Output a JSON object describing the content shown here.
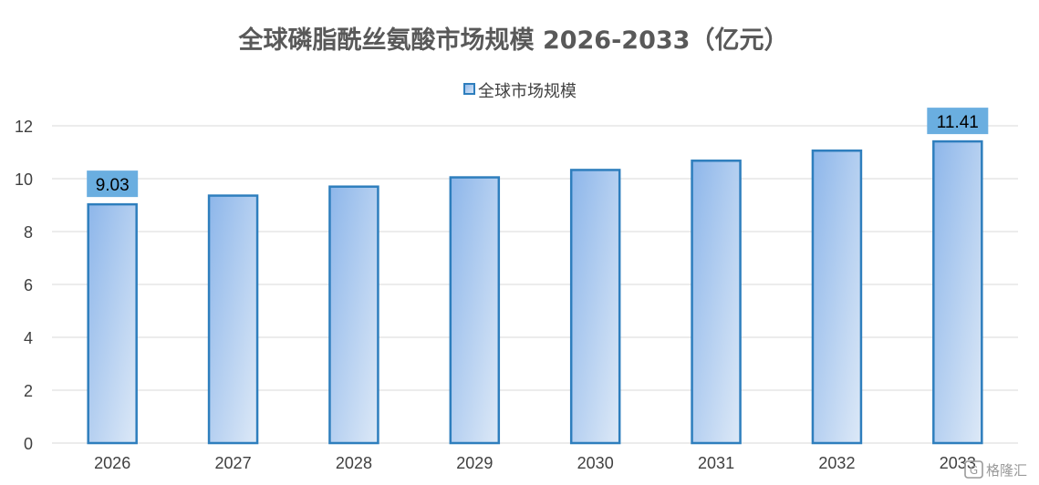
{
  "chart_data": {
    "type": "bar",
    "title": "全球磷脂酰丝氨酸市场规模 2026-2033（亿元）",
    "categories": [
      "2026",
      "2027",
      "2028",
      "2029",
      "2030",
      "2031",
      "2032",
      "2033"
    ],
    "series": [
      {
        "name": "全球市场规模",
        "values": [
          9.03,
          9.36,
          9.7,
          10.05,
          10.33,
          10.68,
          11.06,
          11.41
        ]
      }
    ],
    "data_labels": [
      {
        "index": 0,
        "text": "9.03"
      },
      {
        "index": 7,
        "text": "11.41"
      }
    ],
    "ylim": [
      0,
      12
    ],
    "yticks": [
      0,
      2,
      4,
      6,
      8,
      10,
      12
    ],
    "grid": true,
    "legend_position": "top-center",
    "colors": {
      "bar_gradient_start": "#8db6ea",
      "bar_gradient_end": "#dde9f7",
      "bar_border": "#2e7ebd",
      "data_label_bg": "#6aaee0",
      "gridline": "#d9d9d9"
    }
  },
  "watermark": {
    "text": "格隆汇",
    "icon": "logo-icon"
  }
}
